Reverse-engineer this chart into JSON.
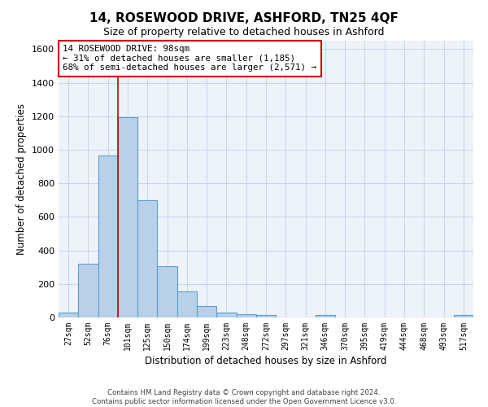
{
  "title": "14, ROSEWOOD DRIVE, ASHFORD, TN25 4QF",
  "subtitle": "Size of property relative to detached houses in Ashford",
  "xlabel": "Distribution of detached houses by size in Ashford",
  "ylabel": "Number of detached properties",
  "bar_color": "#b8d0e8",
  "bar_edge_color": "#5a9fd4",
  "grid_color": "#c8d8ea",
  "background_color": "#eef3fa",
  "categories": [
    "27sqm",
    "52sqm",
    "76sqm",
    "101sqm",
    "125sqm",
    "150sqm",
    "174sqm",
    "199sqm",
    "223sqm",
    "248sqm",
    "272sqm",
    "297sqm",
    "321sqm",
    "346sqm",
    "370sqm",
    "395sqm",
    "419sqm",
    "444sqm",
    "468sqm",
    "493sqm",
    "517sqm"
  ],
  "values": [
    30,
    320,
    965,
    1195,
    700,
    305,
    155,
    70,
    30,
    20,
    15,
    0,
    0,
    15,
    0,
    0,
    0,
    0,
    0,
    0,
    15
  ],
  "ylim": [
    0,
    1650
  ],
  "yticks": [
    0,
    200,
    400,
    600,
    800,
    1000,
    1200,
    1400,
    1600
  ],
  "property_line_bin": 3,
  "annotation_line1": "14 ROSEWOOD DRIVE: 98sqm",
  "annotation_line2": "← 31% of detached houses are smaller (1,185)",
  "annotation_line3": "68% of semi-detached houses are larger (2,571) →",
  "annotation_box_color": "#ffffff",
  "annotation_box_edge_color": "#cc0000",
  "footer_line1": "Contains HM Land Registry data © Crown copyright and database right 2024.",
  "footer_line2": "Contains public sector information licensed under the Open Government Licence v3.0."
}
